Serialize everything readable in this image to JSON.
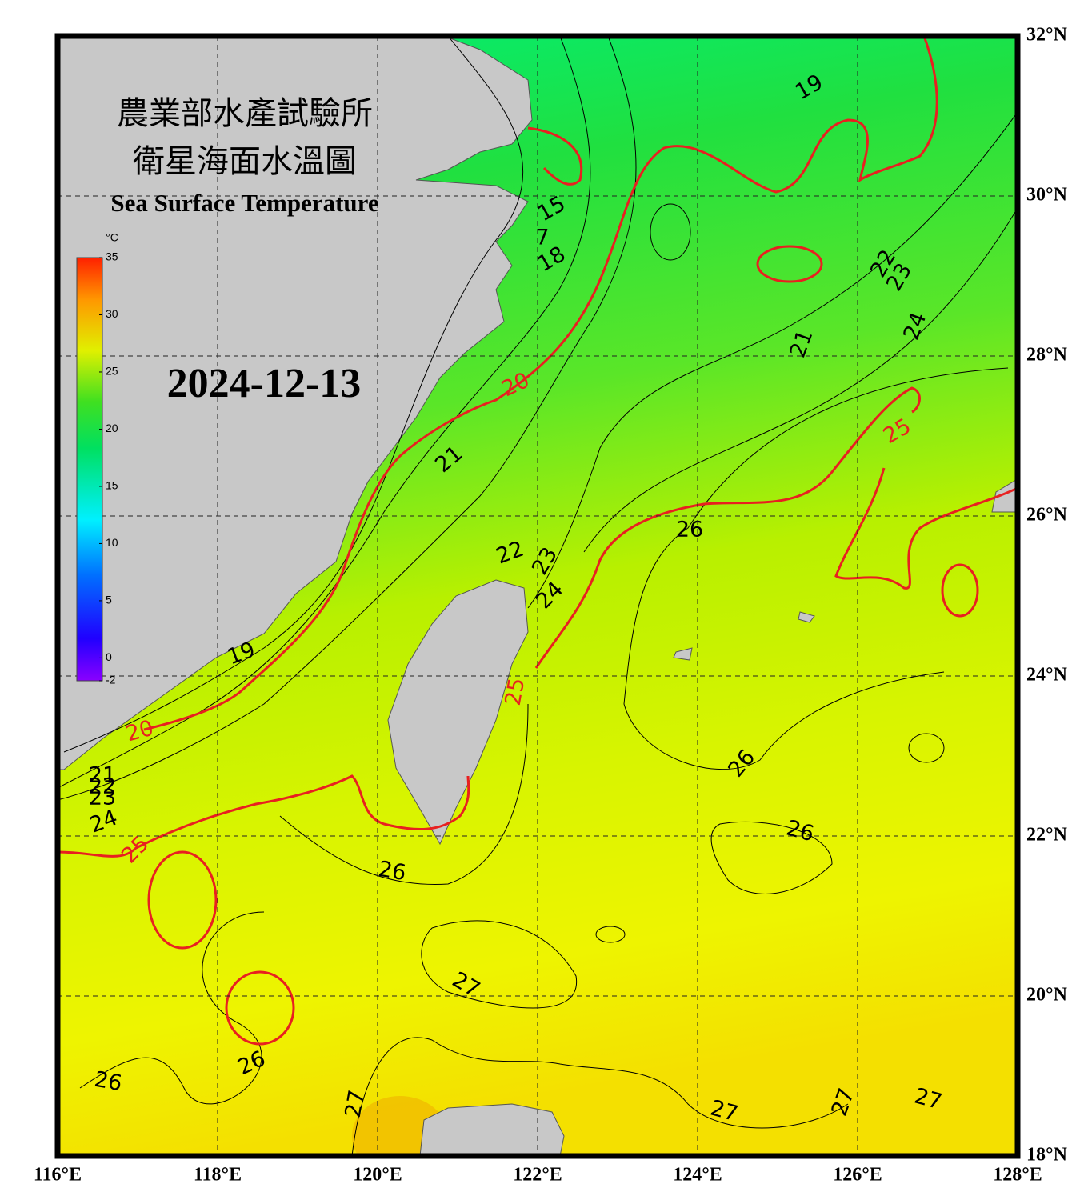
{
  "header": {
    "title_zh_1": "農業部水產試驗所",
    "title_zh_2": "衛星海面水溫圖",
    "title_en": "Sea Surface Temperature",
    "date": "2024-12-13"
  },
  "colorbar": {
    "unit": "°C",
    "min": -2,
    "max": 35,
    "ticks": [
      -2,
      0,
      5,
      10,
      15,
      20,
      25,
      30,
      35
    ]
  },
  "map": {
    "lon_lim": [
      116,
      128
    ],
    "lat_lim": [
      18,
      32
    ],
    "lon_ticks": [
      {
        "value": 116,
        "label": "116°E"
      },
      {
        "value": 118,
        "label": "118°E"
      },
      {
        "value": 120,
        "label": "120°E"
      },
      {
        "value": 122,
        "label": "122°E"
      },
      {
        "value": 124,
        "label": "124°E"
      },
      {
        "value": 126,
        "label": "126°E"
      },
      {
        "value": 128,
        "label": "128°E"
      }
    ],
    "lat_ticks": [
      {
        "value": 18,
        "label": "18°N"
      },
      {
        "value": 20,
        "label": "20°N"
      },
      {
        "value": 22,
        "label": "22°N"
      },
      {
        "value": 24,
        "label": "24°N"
      },
      {
        "value": 26,
        "label": "26°N"
      },
      {
        "value": 28,
        "label": "28°N"
      },
      {
        "value": 30,
        "label": "30°N"
      },
      {
        "value": 32,
        "label": "32°N"
      }
    ],
    "highlight_isotherms": [
      20,
      25
    ],
    "contour_labels": [
      19,
      15,
      7,
      18,
      22,
      23,
      24,
      21,
      20,
      25,
      21,
      26,
      22,
      23,
      24,
      19,
      25,
      20,
      26,
      21,
      22,
      23,
      24,
      26,
      25,
      26,
      27,
      26,
      26,
      27,
      27,
      27,
      27
    ]
  }
}
